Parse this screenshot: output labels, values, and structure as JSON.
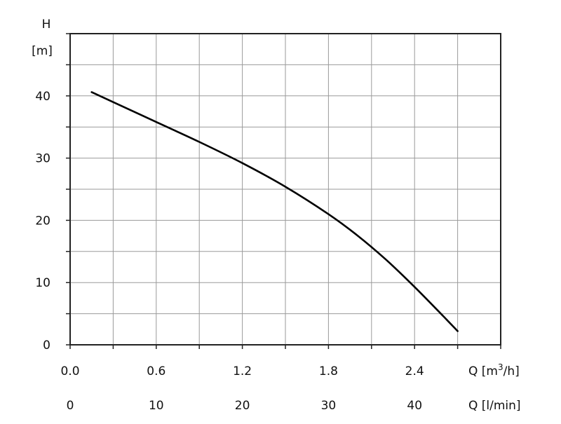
{
  "chart_data": {
    "type": "line",
    "title": "",
    "ylabel_line1": "H",
    "ylabel_line2": "[m]",
    "xlabel_primary_prefix": "Q [m",
    "xlabel_primary_sup": "3",
    "xlabel_primary_suffix": "/h]",
    "xlabel_secondary": "Q [l/min]",
    "xlim": [
      0,
      3.0
    ],
    "ylim": [
      0,
      50
    ],
    "grid": true,
    "x_ticks": [
      "0.0",
      "0.6",
      "1.2",
      "1.8",
      "2.4"
    ],
    "x_tick_values": [
      0,
      0.6,
      1.2,
      1.8,
      2.4
    ],
    "x2_ticks": [
      "0",
      "10",
      "20",
      "30",
      "40"
    ],
    "x2_tick_values": [
      0,
      10,
      20,
      30,
      40
    ],
    "x2_per_x": 16.6667,
    "y_ticks": [
      "0",
      "10",
      "20",
      "30",
      "40"
    ],
    "y_tick_values": [
      0,
      10,
      20,
      30,
      40
    ],
    "series": [
      {
        "color": "#000000",
        "x": [
          0.15,
          0.3,
          0.6,
          0.9,
          1.2,
          1.5,
          1.8,
          2.0,
          2.2,
          2.4,
          2.6,
          2.7
        ],
        "y": [
          40.6,
          39.0,
          35.8,
          32.6,
          29.2,
          25.4,
          21.0,
          17.6,
          13.7,
          9.3,
          4.6,
          2.2
        ]
      }
    ]
  }
}
